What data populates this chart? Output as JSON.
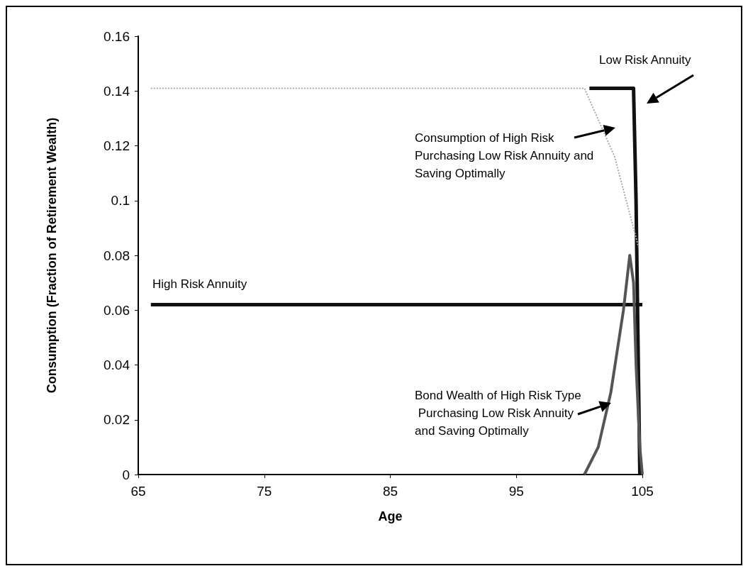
{
  "chart_data": {
    "type": "line",
    "xlabel": "Age",
    "ylabel": "Consumption (Fraction of Retirement Wealth)",
    "xlim": [
      65,
      105
    ],
    "xticks": [
      65,
      75,
      85,
      95,
      105
    ],
    "ylim": [
      0,
      0.16
    ],
    "yticks": [
      0,
      0.02,
      0.04,
      0.06,
      0.08,
      0.1,
      0.12,
      0.14,
      0.16
    ],
    "grid": false,
    "legend": false,
    "marker": "none",
    "series": [
      {
        "name": "Consumption of High Risk Purchasing Low Risk Annuity and Saving Optimally",
        "color": "#aaaaaa",
        "line_style": "dotted",
        "x": [
          66,
          100.4,
          102.8,
          104.7
        ],
        "values": [
          0.141,
          0.141,
          0.116,
          0.083
        ]
      },
      {
        "name": "Low Risk Annuity",
        "color": "#111111",
        "x": [
          100.8,
          104.3,
          104.5,
          104.8
        ],
        "values": [
          0.141,
          0.141,
          0.1,
          0
        ]
      },
      {
        "name": "High Risk Annuity",
        "color": "#111111",
        "x": [
          66,
          105
        ],
        "values": [
          0.062,
          0.062
        ]
      },
      {
        "name": "Bond Wealth of High Risk Type Purchasing Low Risk Annuity and Saving Optimally",
        "color": "#555555",
        "x": [
          100.4,
          101.5,
          102.5,
          103.5,
          104,
          104.3,
          104.5,
          104.8,
          105
        ],
        "values": [
          0,
          0.01,
          0.03,
          0.06,
          0.08,
          0.07,
          0.04,
          0.01,
          0
        ]
      }
    ]
  }
}
